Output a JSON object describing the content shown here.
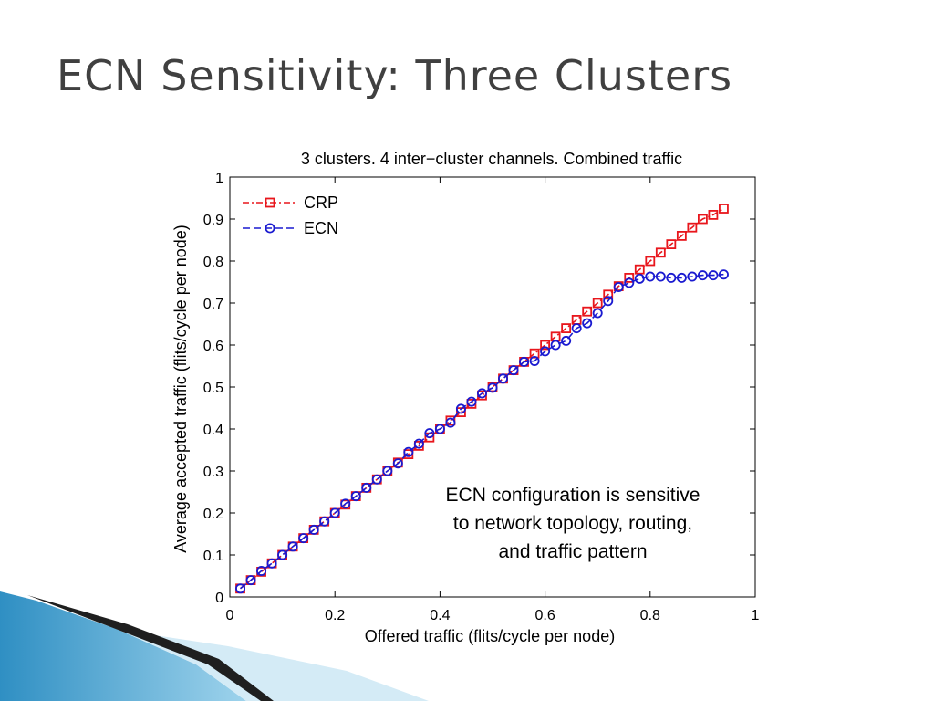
{
  "slide": {
    "title": "ECN Sensitivity: Three Clusters"
  },
  "chart_data": {
    "type": "line",
    "title": "3 clusters. 4 inter−cluster channels. Combined traffic",
    "xlabel": "Offered traffic (flits/cycle per node)",
    "ylabel": "Average accepted traffic (flits/cycle per node)",
    "xlim": [
      0,
      1
    ],
    "ylim": [
      0,
      1
    ],
    "xticks": [
      0,
      0.2,
      0.4,
      0.6,
      0.8,
      1
    ],
    "xtick_labels": [
      "0",
      "0.2",
      "0.4",
      "0.6",
      "0.8",
      "1"
    ],
    "yticks": [
      0,
      0.1,
      0.2,
      0.3,
      0.4,
      0.5,
      0.6,
      0.7,
      0.8,
      0.9,
      1
    ],
    "ytick_labels": [
      "0",
      "0.1",
      "0.2",
      "0.3",
      "0.4",
      "0.5",
      "0.6",
      "0.7",
      "0.8",
      "0.9",
      "1"
    ],
    "grid": false,
    "legend_position": "top-left",
    "annotation": [
      "ECN configuration is sensitive",
      "to network topology, routing,",
      "and traffic pattern"
    ],
    "series": [
      {
        "name": "CRP",
        "color": "#e8161c",
        "marker": "square",
        "line_style": "dash-dot",
        "x": [
          0.02,
          0.04,
          0.06,
          0.08,
          0.1,
          0.12,
          0.14,
          0.16,
          0.18,
          0.2,
          0.22,
          0.24,
          0.26,
          0.28,
          0.3,
          0.32,
          0.34,
          0.36,
          0.38,
          0.4,
          0.42,
          0.44,
          0.46,
          0.48,
          0.5,
          0.52,
          0.54,
          0.56,
          0.58,
          0.6,
          0.62,
          0.64,
          0.66,
          0.68,
          0.7,
          0.72,
          0.74,
          0.76,
          0.78,
          0.8,
          0.82,
          0.84,
          0.86,
          0.88,
          0.9,
          0.92,
          0.94
        ],
        "y": [
          0.02,
          0.04,
          0.06,
          0.08,
          0.1,
          0.12,
          0.14,
          0.16,
          0.18,
          0.2,
          0.22,
          0.24,
          0.26,
          0.28,
          0.3,
          0.32,
          0.34,
          0.36,
          0.38,
          0.4,
          0.42,
          0.44,
          0.46,
          0.48,
          0.5,
          0.52,
          0.54,
          0.56,
          0.58,
          0.6,
          0.62,
          0.64,
          0.66,
          0.68,
          0.7,
          0.72,
          0.74,
          0.76,
          0.78,
          0.8,
          0.82,
          0.84,
          0.86,
          0.88,
          0.9,
          0.91,
          0.925
        ]
      },
      {
        "name": "ECN",
        "color": "#1a1ad0",
        "marker": "circle",
        "line_style": "dash",
        "x": [
          0.02,
          0.04,
          0.06,
          0.08,
          0.1,
          0.12,
          0.14,
          0.16,
          0.18,
          0.2,
          0.22,
          0.24,
          0.26,
          0.28,
          0.3,
          0.32,
          0.34,
          0.36,
          0.38,
          0.4,
          0.42,
          0.44,
          0.46,
          0.48,
          0.5,
          0.52,
          0.54,
          0.56,
          0.58,
          0.6,
          0.62,
          0.64,
          0.66,
          0.68,
          0.7,
          0.72,
          0.74,
          0.76,
          0.78,
          0.8,
          0.82,
          0.84,
          0.86,
          0.88,
          0.9,
          0.92,
          0.94
        ],
        "y": [
          0.02,
          0.04,
          0.062,
          0.08,
          0.1,
          0.12,
          0.14,
          0.16,
          0.18,
          0.2,
          0.222,
          0.24,
          0.26,
          0.28,
          0.3,
          0.318,
          0.345,
          0.365,
          0.39,
          0.4,
          0.415,
          0.448,
          0.465,
          0.485,
          0.498,
          0.52,
          0.54,
          0.56,
          0.562,
          0.585,
          0.6,
          0.61,
          0.64,
          0.652,
          0.676,
          0.705,
          0.738,
          0.748,
          0.758,
          0.763,
          0.763,
          0.76,
          0.76,
          0.763,
          0.766,
          0.766,
          0.768
        ]
      }
    ]
  }
}
